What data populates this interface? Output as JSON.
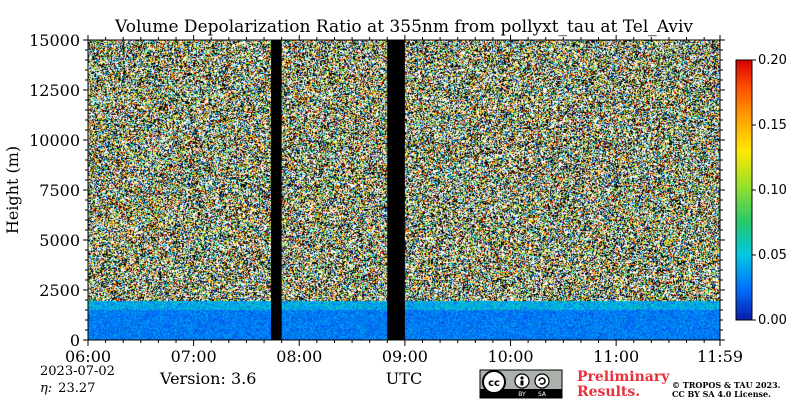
{
  "chart_data": {
    "type": "heatmap",
    "title": "Volume Depolarization Ratio at 355nm from pollyxt_tau at Tel_Aviv",
    "xlabel": "UTC",
    "ylabel": "Height (m)",
    "x_ticks": [
      "06:00",
      "07:00",
      "08:00",
      "09:00",
      "10:00",
      "11:00",
      "11:59"
    ],
    "x_range": [
      "06:00",
      "11:59"
    ],
    "y_ticks": [
      "0",
      "2500",
      "5000",
      "7500",
      "10000",
      "12500",
      "15000"
    ],
    "ylim": [
      0,
      15000
    ],
    "colorbar": {
      "ticks": [
        "0.00",
        "0.05",
        "0.10",
        "0.15",
        "0.20"
      ],
      "range": [
        0,
        0.2
      ],
      "colormap": [
        "#0a1aa8",
        "#0070ff",
        "#00c8e0",
        "#28c86a",
        "#9be22a",
        "#ffe600",
        "#ffa000",
        "#ff4a00",
        "#d80000"
      ]
    },
    "data_gaps": [
      {
        "start": "07:44",
        "end": "07:50"
      },
      {
        "start": "08:50",
        "end": "09:00"
      }
    ],
    "regions": [
      {
        "height_range": [
          0,
          2000
        ],
        "depol_ratio": 0.02
      },
      {
        "height_range": [
          2000,
          15000
        ],
        "depol_ratio": "noise"
      }
    ]
  },
  "footer": {
    "date": "2023-07-02",
    "eta_label": "η:",
    "eta_value": "23.27",
    "version": "Version: 3.6",
    "preliminary_line1": "Preliminary",
    "preliminary_line2": "Results.",
    "copyright_line1": "© TROPOS & TAU 2023.",
    "copyright_line2": "CC BY SA 4.0 License.",
    "cc_badge": {
      "cc": "cc",
      "by": "BY",
      "sa": "SA"
    }
  }
}
